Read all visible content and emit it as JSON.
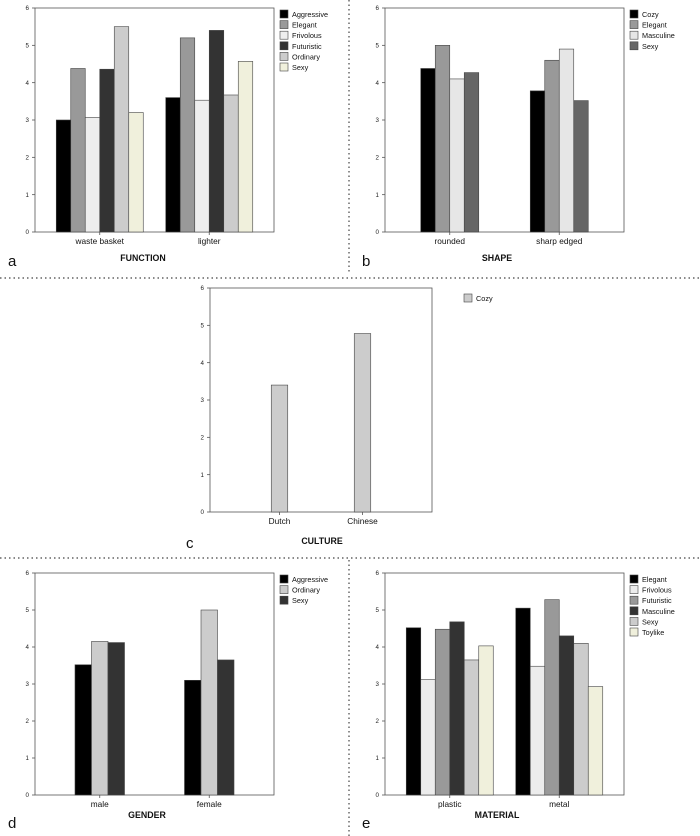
{
  "chart_data": [
    {
      "type": "bar",
      "panel_letter": "a",
      "xlabel": "FUNCTION",
      "categories": [
        "waste basket",
        "lighter"
      ],
      "ylim": [
        0,
        6
      ],
      "yticks": [
        0,
        1,
        2,
        3,
        4,
        5,
        6
      ],
      "legend_position": "right",
      "series": [
        {
          "name": "Aggressive",
          "color": "#000000",
          "values": [
            3.0,
            3.6
          ]
        },
        {
          "name": "Elegant",
          "color": "#999999",
          "values": [
            4.38,
            5.2
          ]
        },
        {
          "name": "Frivolous",
          "color": "#eeeeee",
          "values": [
            3.07,
            3.53
          ]
        },
        {
          "name": "Futuristic",
          "color": "#333333",
          "values": [
            4.36,
            5.4
          ]
        },
        {
          "name": "Ordinary",
          "color": "#cccccc",
          "values": [
            5.5,
            3.67
          ]
        },
        {
          "name": "Sexy",
          "color": "#f0f0dc",
          "values": [
            3.2,
            4.57
          ]
        }
      ]
    },
    {
      "type": "bar",
      "panel_letter": "b",
      "xlabel": "SHAPE",
      "categories": [
        "rounded",
        "sharp edged"
      ],
      "ylim": [
        0,
        6
      ],
      "yticks": [
        0,
        1,
        2,
        3,
        4,
        5,
        6
      ],
      "legend_position": "right",
      "series": [
        {
          "name": "Cozy",
          "color": "#000000",
          "values": [
            4.38,
            3.78
          ]
        },
        {
          "name": "Elegant",
          "color": "#999999",
          "values": [
            5.0,
            4.6
          ]
        },
        {
          "name": "Masculine",
          "color": "#e6e6e6",
          "values": [
            4.1,
            4.9
          ]
        },
        {
          "name": "Sexy",
          "color": "#666666",
          "values": [
            4.27,
            3.52
          ]
        }
      ]
    },
    {
      "type": "bar",
      "panel_letter": "c",
      "xlabel": "CULTURE",
      "categories": [
        "Dutch",
        "Chinese"
      ],
      "ylim": [
        0,
        6
      ],
      "yticks": [
        0,
        1,
        2,
        3,
        4,
        5,
        6
      ],
      "legend_position": "right",
      "series": [
        {
          "name": "Cozy",
          "color": "#cccccc",
          "values": [
            3.4,
            4.78
          ]
        }
      ]
    },
    {
      "type": "bar",
      "panel_letter": "d",
      "xlabel": "GENDER",
      "categories": [
        "male",
        "female"
      ],
      "ylim": [
        0,
        6
      ],
      "yticks": [
        0,
        1,
        2,
        3,
        4,
        5,
        6
      ],
      "legend_position": "right",
      "series": [
        {
          "name": "Aggressive",
          "color": "#000000",
          "values": [
            3.52,
            3.1
          ]
        },
        {
          "name": "Ordinary",
          "color": "#cccccc",
          "values": [
            4.15,
            5.0
          ]
        },
        {
          "name": "Sexy",
          "color": "#333333",
          "values": [
            4.12,
            3.65
          ]
        }
      ]
    },
    {
      "type": "bar",
      "panel_letter": "e",
      "xlabel": "MATERIAL",
      "categories": [
        "plastic",
        "metal"
      ],
      "ylim": [
        0,
        6
      ],
      "yticks": [
        0,
        1,
        2,
        3,
        4,
        5,
        6
      ],
      "legend_position": "right",
      "series": [
        {
          "name": "Elegant",
          "color": "#000000",
          "values": [
            4.52,
            5.05
          ]
        },
        {
          "name": "Frivolous",
          "color": "#ececec",
          "values": [
            3.12,
            3.48
          ]
        },
        {
          "name": "Futuristic",
          "color": "#999999",
          "values": [
            4.48,
            5.28
          ]
        },
        {
          "name": "Masculine",
          "color": "#333333",
          "values": [
            4.68,
            4.3
          ]
        },
        {
          "name": "Sexy",
          "color": "#cccccc",
          "values": [
            3.65,
            4.1
          ]
        },
        {
          "name": "Toylike",
          "color": "#f0f0dc",
          "values": [
            4.03,
            2.93
          ]
        }
      ]
    }
  ]
}
